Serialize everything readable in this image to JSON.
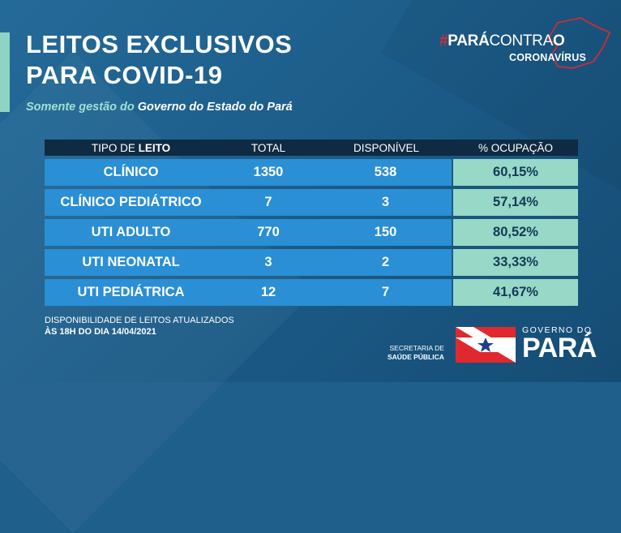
{
  "header": {
    "title_line1": "LEITOS EXCLUSIVOS",
    "title_line2": "PARA COVID-19",
    "subtitle_prefix": "Somente gestão do",
    "subtitle_strong": "Governo do Estado do Pará"
  },
  "campaign": {
    "hash": "#",
    "word1": "PARÁ",
    "word2": "CONTRA",
    "word3": "O",
    "sub": "CORONAVÍRUS"
  },
  "table": {
    "headers": {
      "type_prefix": "TIPO DE",
      "type_strong": "LEITO",
      "total": "TOTAL",
      "available": "DISPONÍVEL",
      "occupancy": "% OCUPAÇÃO"
    },
    "rows": [
      {
        "type": "CLÍNICO",
        "total": "1350",
        "available": "538",
        "occupancy": "60,15%"
      },
      {
        "type": "CLÍNICO PEDIÁTRICO",
        "total": "7",
        "available": "3",
        "occupancy": "57,14%"
      },
      {
        "type": "UTI ADULTO",
        "total": "770",
        "available": "150",
        "occupancy": "80,52%"
      },
      {
        "type": "UTI NEONATAL",
        "total": "3",
        "available": "2",
        "occupancy": "33,33%"
      },
      {
        "type": "UTI PEDIÁTRICA",
        "total": "12",
        "available": "7",
        "occupancy": "41,67%"
      }
    ]
  },
  "footnote": {
    "line1": "DISPONIBILIDADE DE LEITOS ATUALIZADOS",
    "line2": "ÀS 18H DO DIA 14/04/2021"
  },
  "footer": {
    "secretaria_line1": "SECRETARIA DE",
    "secretaria_line2": "SAÚDE PÚBLICA",
    "gov_line1": "GOVERNO DO",
    "gov_line2": "PARÁ"
  },
  "colors": {
    "background": "#1f5f8c",
    "accent": "#8ed3c3",
    "header_row": "#0f2a43",
    "cell_blue": "#2a8fd4",
    "cell_green": "#97d8c6",
    "brand_red": "#e0282e"
  }
}
